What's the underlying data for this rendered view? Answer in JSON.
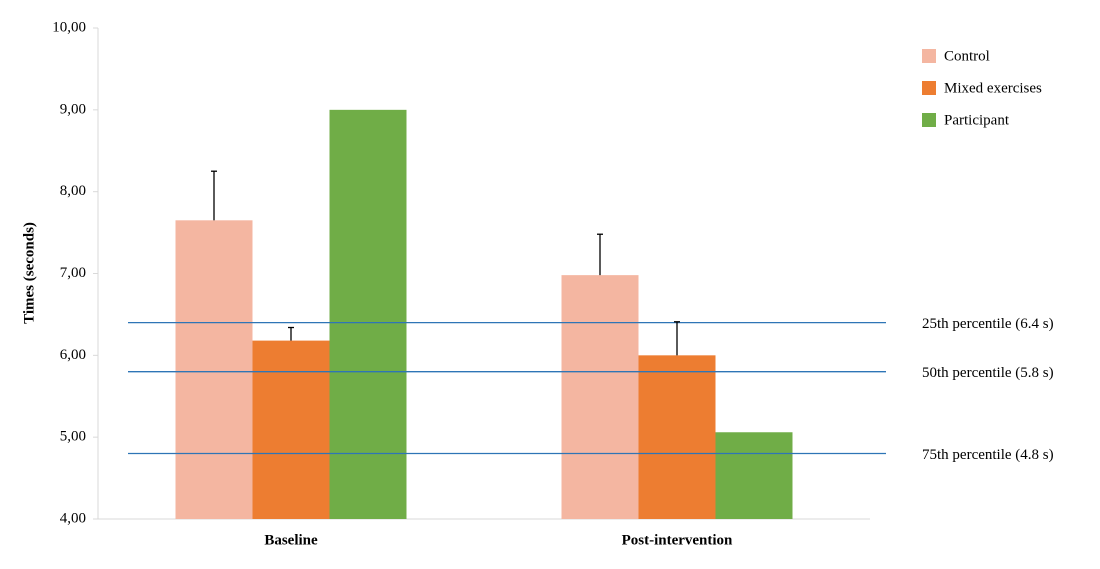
{
  "chart_data": {
    "type": "bar",
    "y_label": "Times  (seconds)",
    "categories": [
      "Baseline",
      "Post-intervention"
    ],
    "series": [
      {
        "name": "Control",
        "color": "#f4b6a1",
        "values": [
          7.65,
          6.98
        ],
        "errors": [
          0.6,
          0.5
        ]
      },
      {
        "name": "Mixed exercises",
        "color": "#ed7d31",
        "values": [
          6.18,
          6.0
        ],
        "errors": [
          0.16,
          0.41
        ]
      },
      {
        "name": "Participant",
        "color": "#70ad47",
        "values": [
          9.0,
          5.06
        ],
        "errors": [
          null,
          null
        ]
      }
    ],
    "ylim": [
      4,
      10
    ],
    "yticks": [
      {
        "value": 4,
        "label": "4,00"
      },
      {
        "value": 5,
        "label": "5,00"
      },
      {
        "value": 6,
        "label": "6,00"
      },
      {
        "value": 7,
        "label": "7,00"
      },
      {
        "value": 8,
        "label": "8,00"
      },
      {
        "value": 9,
        "label": "9,00"
      },
      {
        "value": 10,
        "label": "10,00"
      }
    ],
    "reference_lines": [
      {
        "value": 6.4,
        "label": "25th percentile (6.4 s)"
      },
      {
        "value": 5.8,
        "label": "50th percentile (5.8 s)"
      },
      {
        "value": 4.8,
        "label": "75th percentile (4.8 s)"
      }
    ],
    "reference_color": "#2e75b6",
    "grid": false,
    "legend_position": "top-right"
  }
}
